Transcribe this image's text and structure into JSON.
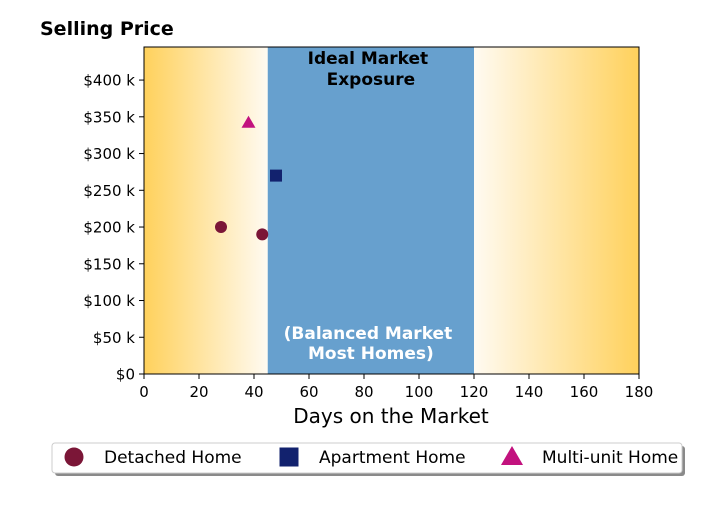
{
  "chart_data": {
    "type": "scatter",
    "title": "Selling Price",
    "xlabel": "Days on the Market",
    "ylabel": "",
    "xlim": [
      0,
      180
    ],
    "ylim": [
      0,
      445000
    ],
    "x_ticks": [
      0,
      20,
      40,
      60,
      80,
      100,
      120,
      140,
      160,
      180
    ],
    "x_tick_labels": [
      "0",
      "20",
      "40",
      "60",
      "80",
      "100",
      "120",
      "140",
      "160",
      "180"
    ],
    "y_ticks": [
      0,
      50000,
      100000,
      150000,
      200000,
      250000,
      300000,
      350000,
      400000
    ],
    "y_tick_labels": [
      "$0",
      "$50 k",
      "$100 k",
      "$150 k",
      "$200 k",
      "$250 k",
      "$300 k",
      "$350 k",
      "$400 k"
    ],
    "grid": false,
    "legend_position": "bottom",
    "background": {
      "gradient_color": "#ffd166",
      "edge_color": "#ffd15c",
      "center_color": "#fffaf0"
    },
    "highlight_band": {
      "x_start": 45,
      "x_end": 120,
      "color": "#67a0ce",
      "top_label_lines": [
        "Ideal Market",
        "Exposure"
      ],
      "top_label_color": "#000000",
      "bottom_label_lines": [
        "(Balanced Market",
        "Most Homes)"
      ],
      "bottom_label_color": "#ffffff"
    },
    "series": [
      {
        "name": "Detached Home",
        "marker": "circle",
        "color": "#7b1637",
        "points": [
          {
            "x": 28,
            "y": 200000
          },
          {
            "x": 43,
            "y": 190000
          }
        ]
      },
      {
        "name": "Apartment Home",
        "marker": "square",
        "color": "#12226e",
        "points": [
          {
            "x": 48,
            "y": 270000
          }
        ]
      },
      {
        "name": "Multi-unit Home",
        "marker": "triangle",
        "color": "#c2127e",
        "points": [
          {
            "x": 38,
            "y": 342000
          }
        ]
      }
    ]
  }
}
